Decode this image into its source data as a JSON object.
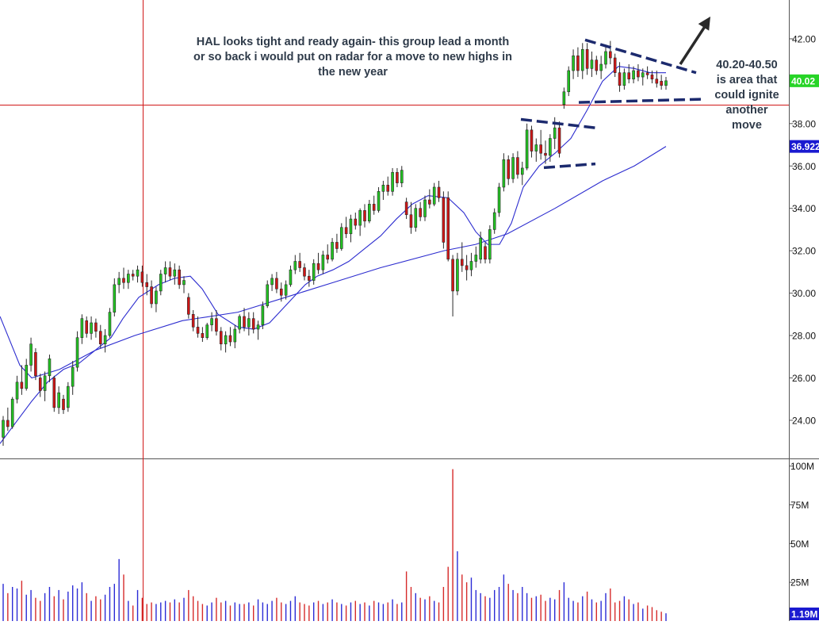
{
  "chart_data": {
    "type": "candlestick",
    "ticker": "HAL",
    "price_axis": {
      "ylim": [
        22.2,
        43.6
      ],
      "ticks": [
        "42.00",
        "40.00",
        "38.00",
        "36.00",
        "34.00",
        "32.00",
        "30.00",
        "28.00",
        "26.00",
        "24.00"
      ],
      "position": "right"
    },
    "volume_axis": {
      "ylim": [
        0,
        103
      ],
      "ticks": [
        "100M",
        "75M",
        "50M",
        "25M"
      ],
      "position": "right"
    },
    "price_badges": {
      "last": "40.02",
      "ma50": "36.922",
      "volume": "1.19M"
    },
    "reference_line": 38.9,
    "annotations": {
      "main_note": [
        "HAL looks tight and ready again- this group lead a month",
        "or so back i would put on radar for a move to new highs in",
        "the new year"
      ],
      "side_note": [
        "40.20-40.50",
        "is area that",
        "could ignite",
        "another",
        "move"
      ]
    },
    "candles": [
      [
        23.2,
        24.2,
        22.8,
        24.0
      ],
      [
        24.0,
        24.6,
        23.5,
        23.7
      ],
      [
        23.7,
        25.1,
        23.6,
        25.0
      ],
      [
        25.0,
        26.1,
        24.8,
        25.8
      ],
      [
        25.8,
        26.6,
        25.2,
        25.5
      ],
      [
        25.5,
        26.9,
        25.4,
        26.6
      ],
      [
        26.6,
        27.9,
        26.3,
        27.6
      ],
      [
        27.2,
        27.4,
        25.9,
        26.1
      ],
      [
        26.0,
        26.2,
        25.1,
        25.4
      ],
      [
        25.4,
        26.3,
        24.9,
        26.1
      ],
      [
        26.1,
        27.1,
        25.8,
        26.9
      ],
      [
        26.0,
        26.1,
        24.4,
        24.6
      ],
      [
        24.6,
        25.6,
        24.3,
        25.3
      ],
      [
        25.0,
        25.2,
        24.3,
        24.5
      ],
      [
        24.6,
        25.8,
        24.4,
        25.6
      ],
      [
        25.6,
        26.8,
        25.2,
        26.5
      ],
      [
        26.5,
        28.2,
        26.3,
        27.9
      ],
      [
        27.9,
        29.0,
        27.6,
        28.8
      ],
      [
        28.7,
        28.9,
        27.9,
        28.1
      ],
      [
        28.1,
        28.9,
        27.8,
        28.6
      ],
      [
        28.6,
        28.8,
        27.9,
        28.2
      ],
      [
        28.2,
        28.5,
        27.4,
        27.6
      ],
      [
        27.6,
        28.3,
        27.2,
        28.0
      ],
      [
        28.0,
        29.3,
        27.9,
        29.1
      ],
      [
        29.1,
        30.7,
        28.9,
        30.4
      ],
      [
        30.4,
        31.0,
        30.0,
        30.7
      ],
      [
        30.7,
        31.2,
        30.2,
        30.5
      ],
      [
        30.5,
        31.1,
        30.2,
        30.9
      ],
      [
        30.9,
        31.1,
        30.6,
        30.8
      ],
      [
        30.8,
        31.3,
        30.5,
        31.1
      ],
      [
        31.0,
        31.3,
        30.3,
        30.5
      ],
      [
        30.5,
        30.9,
        29.9,
        30.3
      ],
      [
        30.3,
        30.6,
        29.3,
        29.5
      ],
      [
        29.5,
        30.3,
        29.1,
        30.1
      ],
      [
        30.1,
        31.1,
        29.9,
        30.9
      ],
      [
        30.9,
        31.5,
        30.5,
        31.2
      ],
      [
        31.2,
        31.5,
        30.6,
        30.8
      ],
      [
        30.8,
        31.4,
        30.4,
        31.1
      ],
      [
        31.1,
        31.3,
        30.2,
        30.4
      ],
      [
        30.4,
        30.8,
        30.0,
        30.6
      ],
      [
        29.8,
        30.0,
        28.8,
        29.0
      ],
      [
        29.0,
        29.2,
        28.2,
        28.4
      ],
      [
        28.4,
        28.9,
        27.9,
        28.1
      ],
      [
        28.1,
        28.4,
        27.7,
        27.9
      ],
      [
        27.9,
        28.6,
        27.8,
        28.5
      ],
      [
        28.5,
        29.1,
        28.2,
        28.8
      ],
      [
        28.8,
        29.2,
        28.0,
        28.2
      ],
      [
        28.2,
        28.4,
        27.3,
        27.6
      ],
      [
        27.6,
        28.2,
        27.2,
        28.0
      ],
      [
        28.0,
        28.4,
        27.5,
        27.7
      ],
      [
        27.7,
        28.5,
        27.4,
        28.3
      ],
      [
        28.3,
        29.0,
        28.1,
        28.9
      ],
      [
        28.9,
        29.3,
        28.2,
        28.4
      ],
      [
        28.4,
        29.1,
        28.0,
        28.8
      ],
      [
        28.8,
        29.1,
        28.1,
        28.3
      ],
      [
        28.3,
        28.7,
        27.8,
        28.5
      ],
      [
        28.5,
        29.6,
        28.3,
        29.4
      ],
      [
        29.4,
        30.6,
        29.3,
        30.4
      ],
      [
        30.4,
        30.9,
        30.1,
        30.7
      ],
      [
        30.7,
        31.0,
        30.0,
        30.2
      ],
      [
        30.2,
        30.5,
        29.6,
        29.9
      ],
      [
        29.9,
        30.6,
        29.7,
        30.4
      ],
      [
        30.4,
        31.3,
        30.3,
        31.1
      ],
      [
        31.1,
        31.8,
        30.9,
        31.5
      ],
      [
        31.5,
        31.9,
        31.0,
        31.2
      ],
      [
        31.2,
        31.4,
        30.6,
        30.8
      ],
      [
        30.8,
        31.1,
        30.3,
        30.6
      ],
      [
        30.6,
        31.6,
        30.4,
        31.4
      ],
      [
        31.4,
        31.9,
        30.9,
        31.1
      ],
      [
        31.1,
        32.0,
        30.9,
        31.8
      ],
      [
        31.8,
        32.3,
        31.4,
        31.6
      ],
      [
        31.6,
        32.6,
        31.5,
        32.4
      ],
      [
        32.4,
        32.8,
        31.9,
        32.1
      ],
      [
        32.1,
        33.3,
        32.0,
        33.1
      ],
      [
        33.1,
        33.6,
        32.6,
        32.8
      ],
      [
        32.8,
        33.7,
        32.4,
        33.5
      ],
      [
        33.5,
        33.8,
        33.0,
        33.2
      ],
      [
        33.2,
        34.0,
        32.7,
        33.9
      ],
      [
        33.9,
        34.2,
        33.1,
        33.4
      ],
      [
        33.4,
        34.4,
        33.3,
        34.2
      ],
      [
        34.2,
        34.6,
        33.7,
        33.9
      ],
      [
        33.9,
        35.0,
        33.8,
        34.8
      ],
      [
        34.8,
        35.3,
        34.4,
        35.1
      ],
      [
        35.1,
        35.5,
        34.6,
        34.8
      ],
      [
        34.8,
        35.9,
        34.6,
        35.7
      ],
      [
        35.7,
        35.9,
        35.0,
        35.2
      ],
      [
        35.2,
        36.0,
        35.0,
        35.8
      ],
      [
        34.3,
        34.5,
        33.5,
        33.7
      ],
      [
        33.7,
        34.3,
        32.8,
        33.1
      ],
      [
        33.1,
        34.2,
        32.9,
        34.0
      ],
      [
        34.0,
        34.3,
        33.4,
        33.6
      ],
      [
        33.6,
        34.6,
        33.4,
        34.4
      ],
      [
        34.4,
        34.9,
        34.0,
        34.2
      ],
      [
        34.2,
        35.2,
        34.1,
        35.0
      ],
      [
        35.0,
        35.3,
        34.3,
        34.5
      ],
      [
        34.5,
        34.8,
        32.1,
        32.4
      ],
      [
        34.5,
        34.8,
        31.5,
        31.6
      ],
      [
        31.6,
        31.8,
        28.9,
        30.1
      ],
      [
        30.1,
        31.9,
        29.9,
        31.6
      ],
      [
        31.6,
        32.4,
        31.0,
        31.3
      ],
      [
        31.3,
        31.8,
        30.6,
        31.1
      ],
      [
        31.1,
        31.9,
        30.8,
        31.5
      ],
      [
        31.5,
        32.2,
        31.2,
        31.8
      ],
      [
        31.6,
        32.9,
        31.4,
        32.6
      ],
      [
        32.2,
        32.4,
        31.4,
        31.6
      ],
      [
        31.6,
        33.2,
        31.4,
        33.0
      ],
      [
        33.0,
        34.0,
        32.8,
        33.8
      ],
      [
        33.8,
        35.2,
        33.6,
        35.0
      ],
      [
        35.0,
        36.6,
        34.8,
        36.3
      ],
      [
        36.3,
        36.5,
        35.1,
        35.4
      ],
      [
        35.4,
        36.6,
        35.2,
        36.4
      ],
      [
        36.4,
        36.7,
        35.4,
        35.6
      ],
      [
        35.6,
        36.2,
        35.1,
        35.9
      ],
      [
        35.9,
        38.0,
        35.8,
        37.7
      ],
      [
        37.7,
        37.9,
        36.4,
        36.7
      ],
      [
        36.7,
        37.3,
        36.2,
        37.0
      ],
      [
        37.0,
        37.7,
        36.3,
        36.6
      ],
      [
        36.6,
        37.2,
        36.1,
        36.5
      ],
      [
        36.5,
        37.5,
        36.2,
        37.3
      ],
      [
        37.3,
        38.3,
        36.8,
        37.8
      ],
      [
        37.8,
        38.1,
        36.4,
        36.6
      ],
      [
        38.9,
        39.7,
        38.7,
        39.5
      ],
      [
        39.5,
        40.7,
        39.3,
        40.5
      ],
      [
        40.5,
        41.5,
        40.1,
        41.2
      ],
      [
        41.2,
        41.6,
        40.2,
        40.5
      ],
      [
        40.5,
        41.8,
        40.1,
        41.5
      ],
      [
        41.5,
        41.8,
        40.3,
        40.6
      ],
      [
        40.6,
        41.4,
        40.2,
        41.0
      ],
      [
        41.0,
        41.2,
        40.3,
        40.5
      ],
      [
        40.5,
        41.2,
        40.1,
        40.8
      ],
      [
        40.8,
        41.7,
        40.6,
        41.4
      ],
      [
        41.4,
        41.9,
        40.8,
        41.1
      ],
      [
        41.1,
        41.3,
        40.2,
        40.4
      ],
      [
        40.4,
        40.9,
        39.5,
        39.8
      ],
      [
        39.8,
        40.6,
        39.6,
        40.4
      ],
      [
        40.4,
        40.8,
        39.9,
        40.1
      ],
      [
        40.1,
        40.7,
        39.9,
        40.5
      ],
      [
        40.5,
        40.8,
        40.0,
        40.2
      ],
      [
        40.2,
        40.6,
        39.8,
        40.4
      ],
      [
        40.4,
        40.7,
        40.1,
        40.3
      ],
      [
        40.3,
        40.5,
        39.9,
        40.1
      ],
      [
        40.1,
        40.5,
        39.7,
        39.9
      ],
      [
        40.0,
        40.3,
        39.6,
        39.8
      ],
      [
        39.8,
        40.2,
        39.6,
        40.02
      ]
    ],
    "volume_millions": [
      24,
      18,
      22,
      21,
      26,
      17,
      20,
      15,
      13,
      18,
      22,
      16,
      20,
      14,
      19,
      23,
      21,
      25,
      18,
      13,
      16,
      14,
      17,
      22,
      24,
      40,
      30,
      13,
      10,
      20,
      15,
      11,
      12,
      11,
      12,
      13,
      12,
      14,
      12,
      15,
      20,
      16,
      13,
      11,
      10,
      12,
      15,
      12,
      13,
      10,
      12,
      11,
      11,
      12,
      10,
      14,
      12,
      11,
      13,
      15,
      12,
      11,
      13,
      16,
      12,
      11,
      10,
      12,
      13,
      11,
      12,
      14,
      12,
      11,
      10,
      12,
      13,
      11,
      12,
      10,
      13,
      12,
      11,
      12,
      14,
      11,
      12,
      32,
      22,
      18,
      15,
      14,
      16,
      13,
      12,
      22,
      35,
      98,
      45,
      30,
      25,
      28,
      20,
      18,
      16,
      15,
      20,
      22,
      30,
      24,
      20,
      18,
      22,
      18,
      15,
      16,
      17,
      13,
      15,
      14,
      20,
      25,
      15,
      13,
      12,
      16,
      19,
      14,
      12,
      13,
      18,
      21,
      12,
      13,
      16,
      14,
      11,
      12,
      8,
      10,
      9,
      7,
      6,
      5
    ],
    "ma50": [
      [
        0,
        28.9
      ],
      [
        25,
        26.6
      ],
      [
        40,
        26.0
      ],
      [
        75,
        26.4
      ],
      [
        120,
        27.3
      ],
      [
        170,
        28.0
      ],
      [
        230,
        28.7
      ],
      [
        300,
        29.1
      ],
      [
        360,
        29.8
      ],
      [
        420,
        30.5
      ],
      [
        480,
        31.2
      ],
      [
        560,
        32.0
      ],
      [
        600,
        32.3
      ],
      [
        640,
        32.8
      ],
      [
        700,
        34.0
      ],
      [
        760,
        35.3
      ],
      [
        800,
        36.0
      ],
      [
        840,
        36.922
      ]
    ],
    "ma10": [
      [
        0,
        22.9
      ],
      [
        20,
        23.9
      ],
      [
        40,
        24.9
      ],
      [
        60,
        25.8
      ],
      [
        80,
        26.4
      ],
      [
        100,
        26.7
      ],
      [
        120,
        27.3
      ],
      [
        140,
        27.9
      ],
      [
        155,
        28.8
      ],
      [
        175,
        29.8
      ],
      [
        200,
        30.4
      ],
      [
        220,
        30.7
      ],
      [
        240,
        30.8
      ],
      [
        255,
        30.2
      ],
      [
        275,
        29.0
      ],
      [
        300,
        28.4
      ],
      [
        320,
        28.3
      ],
      [
        340,
        28.6
      ],
      [
        360,
        29.4
      ],
      [
        385,
        30.4
      ],
      [
        400,
        30.8
      ],
      [
        420,
        31.1
      ],
      [
        440,
        31.5
      ],
      [
        460,
        32.1
      ],
      [
        480,
        32.7
      ],
      [
        500,
        33.5
      ],
      [
        520,
        34.2
      ],
      [
        540,
        34.6
      ],
      [
        565,
        34.5
      ],
      [
        585,
        33.8
      ],
      [
        600,
        32.9
      ],
      [
        615,
        32.3
      ],
      [
        630,
        32.3
      ],
      [
        645,
        33.3
      ],
      [
        660,
        35.0
      ],
      [
        680,
        36.0
      ],
      [
        700,
        36.6
      ],
      [
        720,
        37.3
      ],
      [
        740,
        38.6
      ],
      [
        760,
        40.0
      ],
      [
        780,
        40.7
      ],
      [
        800,
        40.6
      ],
      [
        820,
        40.4
      ],
      [
        840,
        40.4
      ]
    ],
    "trendlines": [
      [
        [
          738,
          41.95
        ],
        [
          878,
          40.4
        ]
      ],
      [
        [
          730,
          39.0
        ],
        [
          886,
          39.15
        ]
      ],
      [
        [
          657,
          38.2
        ],
        [
          751,
          37.8
        ]
      ],
      [
        [
          686,
          35.92
        ],
        [
          751,
          36.1
        ]
      ]
    ],
    "arrow": [
      [
        858,
        40.8
      ],
      [
        896,
        43.05
      ]
    ]
  }
}
